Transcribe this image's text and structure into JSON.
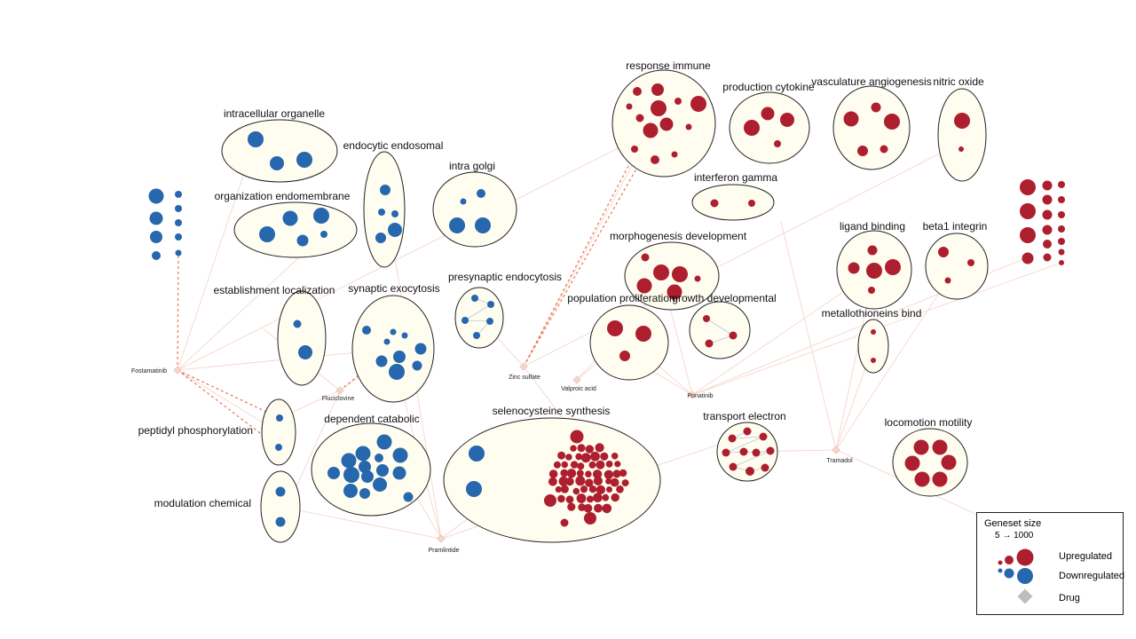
{
  "legend": {
    "title": "Geneset size",
    "range": "5 → 1000",
    "up_label": "Upregulated",
    "down_label": "Downregulated",
    "drug_label": "Drug"
  },
  "colors": {
    "up": "#ad1f2f",
    "down": "#2667ad",
    "cluster_fill": "#fffdf0",
    "edge": "#f3c9bd",
    "drug": "#d9d9d9"
  },
  "clusters": [
    {
      "id": "intracellular-organelle",
      "label": "intracellular organelle",
      "type": "down"
    },
    {
      "id": "endocytic-endosomal",
      "label": "endocytic endosomal",
      "type": "down"
    },
    {
      "id": "intra-golgi",
      "label": "intra golgi",
      "type": "down"
    },
    {
      "id": "organization-endomembrane",
      "label": "organization endomembrane",
      "type": "down"
    },
    {
      "id": "establishment-localization",
      "label": "establishment localization",
      "type": "down"
    },
    {
      "id": "synaptic-exocytosis",
      "label": "synaptic exocytosis",
      "type": "down"
    },
    {
      "id": "presynaptic-endocytosis",
      "label": "presynaptic endocytosis",
      "type": "down"
    },
    {
      "id": "peptidyl-phosphorylation",
      "label": "peptidyl phosphorylation",
      "type": "down"
    },
    {
      "id": "modulation-chemical",
      "label": "modulation chemical",
      "type": "down"
    },
    {
      "id": "dependent-catabolic",
      "label": "dependent catabolic",
      "type": "down"
    },
    {
      "id": "selenocysteine-synthesis",
      "label": "selenocysteine synthesis",
      "type": "mixed"
    },
    {
      "id": "response-immune",
      "label": "response immune",
      "type": "up"
    },
    {
      "id": "production-cytokine",
      "label": "production cytokine",
      "type": "up"
    },
    {
      "id": "vasculature-angiogenesis",
      "label": "vasculature angiogenesis",
      "type": "up"
    },
    {
      "id": "nitric-oxide",
      "label": "nitric oxide",
      "type": "up"
    },
    {
      "id": "interferon-gamma",
      "label": "interferon gamma",
      "type": "up"
    },
    {
      "id": "morphogenesis-development",
      "label": "morphogenesis development",
      "type": "up"
    },
    {
      "id": "population-proliferation",
      "label": "population proliferation",
      "type": "up"
    },
    {
      "id": "growth-developmental",
      "label": "growth developmental",
      "type": "up"
    },
    {
      "id": "ligand-binding",
      "label": "ligand binding",
      "type": "up"
    },
    {
      "id": "beta1-integrin",
      "label": "beta1 integrin",
      "type": "up"
    },
    {
      "id": "metallothioneins-bind",
      "label": "metallothioneins bind",
      "type": "up"
    },
    {
      "id": "transport-electron",
      "label": "transport electron",
      "type": "up"
    },
    {
      "id": "locomotion-motility",
      "label": "locomotion motility",
      "type": "up"
    }
  ],
  "drugs": [
    "Fostamatinib",
    "Fluciclovine",
    "Zinc sulfate",
    "Valproic acid",
    "Ponatinib",
    "Tramadol",
    "Pramlintide"
  ]
}
